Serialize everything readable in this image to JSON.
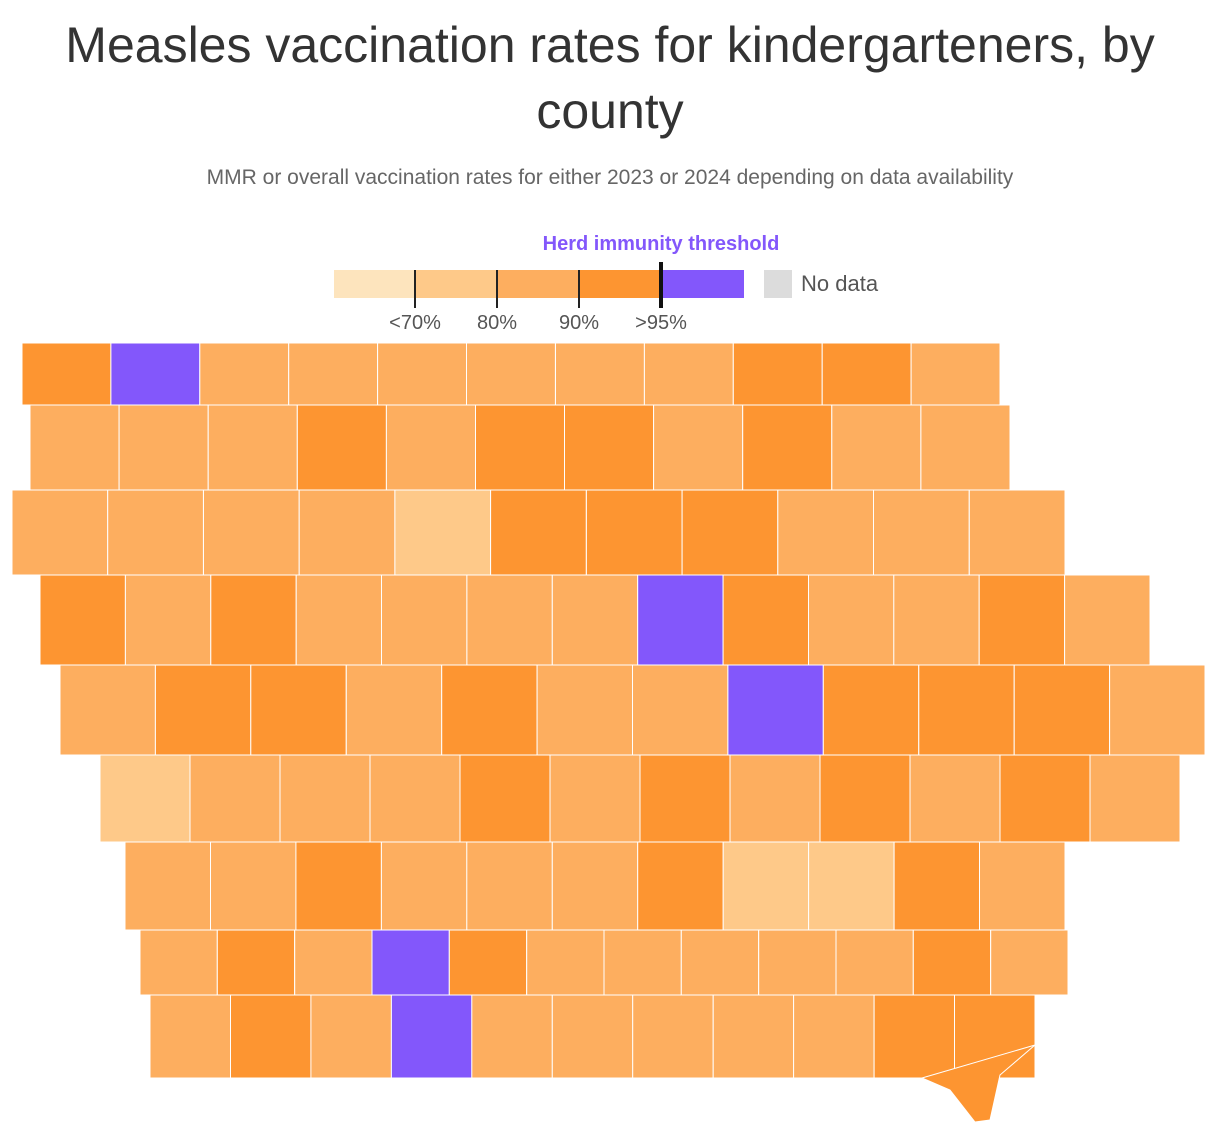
{
  "title": "Measles vaccination rates for kindergarteners, by county",
  "subtitle": "MMR or overall vaccination rates for either 2023 or 2024 depending on data availability",
  "legend": {
    "title": "Herd immunity threshold",
    "tick_labels": [
      "<70%",
      "80%",
      "90%",
      ">95%"
    ],
    "no_data_label": "No data",
    "bins": [
      {
        "label": "<70%",
        "color": "#fde4bd"
      },
      {
        "label": "70–80%",
        "color": "#fec989"
      },
      {
        "label": "80–90%",
        "color": "#fdae5f"
      },
      {
        "label": "90–95%",
        "color": "#fd9531"
      },
      {
        "label": ">95%",
        "color": "#8357fb"
      }
    ],
    "herd_color": "#8357fb",
    "no_data_color": "#dcdcdc"
  },
  "map": {
    "border_color": "#ffffff",
    "rows": [
      [
        "90-95",
        "95+",
        "80-90",
        "80-90",
        "80-90",
        "80-90",
        "80-90",
        "80-90",
        "90-95",
        "90-95",
        "80-90"
      ],
      [
        "80-90",
        "80-90",
        "80-90",
        "90-95",
        "80-90",
        "90-95",
        "90-95",
        "80-90",
        "90-95",
        "80-90",
        "80-90"
      ],
      [
        "80-90",
        "80-90",
        "80-90",
        "80-90",
        "70-80",
        "90-95",
        "90-95",
        "90-95",
        "80-90",
        "80-90",
        "80-90"
      ],
      [
        "90-95",
        "80-90",
        "90-95",
        "80-90",
        "80-90",
        "80-90",
        "80-90",
        "95+",
        "90-95",
        "80-90",
        "80-90",
        "90-95",
        "80-90"
      ],
      [
        "80-90",
        "90-95",
        "90-95",
        "80-90",
        "90-95",
        "80-90",
        "80-90",
        "95+",
        "90-95",
        "90-95",
        "90-95",
        "80-90"
      ],
      [
        "70-80",
        "80-90",
        "80-90",
        "80-90",
        "90-95",
        "80-90",
        "90-95",
        "80-90",
        "90-95",
        "80-90",
        "90-95",
        "80-90"
      ],
      [
        "80-90",
        "80-90",
        "90-95",
        "80-90",
        "80-90",
        "80-90",
        "90-95",
        "70-80",
        "70-80",
        "90-95",
        "80-90"
      ],
      [
        "80-90",
        "90-95",
        "80-90",
        "95+",
        "90-95",
        "80-90",
        "80-90",
        "80-90",
        "80-90",
        "80-90",
        "90-95",
        "80-90"
      ],
      [
        "80-90",
        "90-95",
        "80-90",
        "95+",
        "80-90",
        "80-90",
        "80-90",
        "80-90",
        "80-90",
        "90-95",
        "90-95"
      ]
    ]
  }
}
